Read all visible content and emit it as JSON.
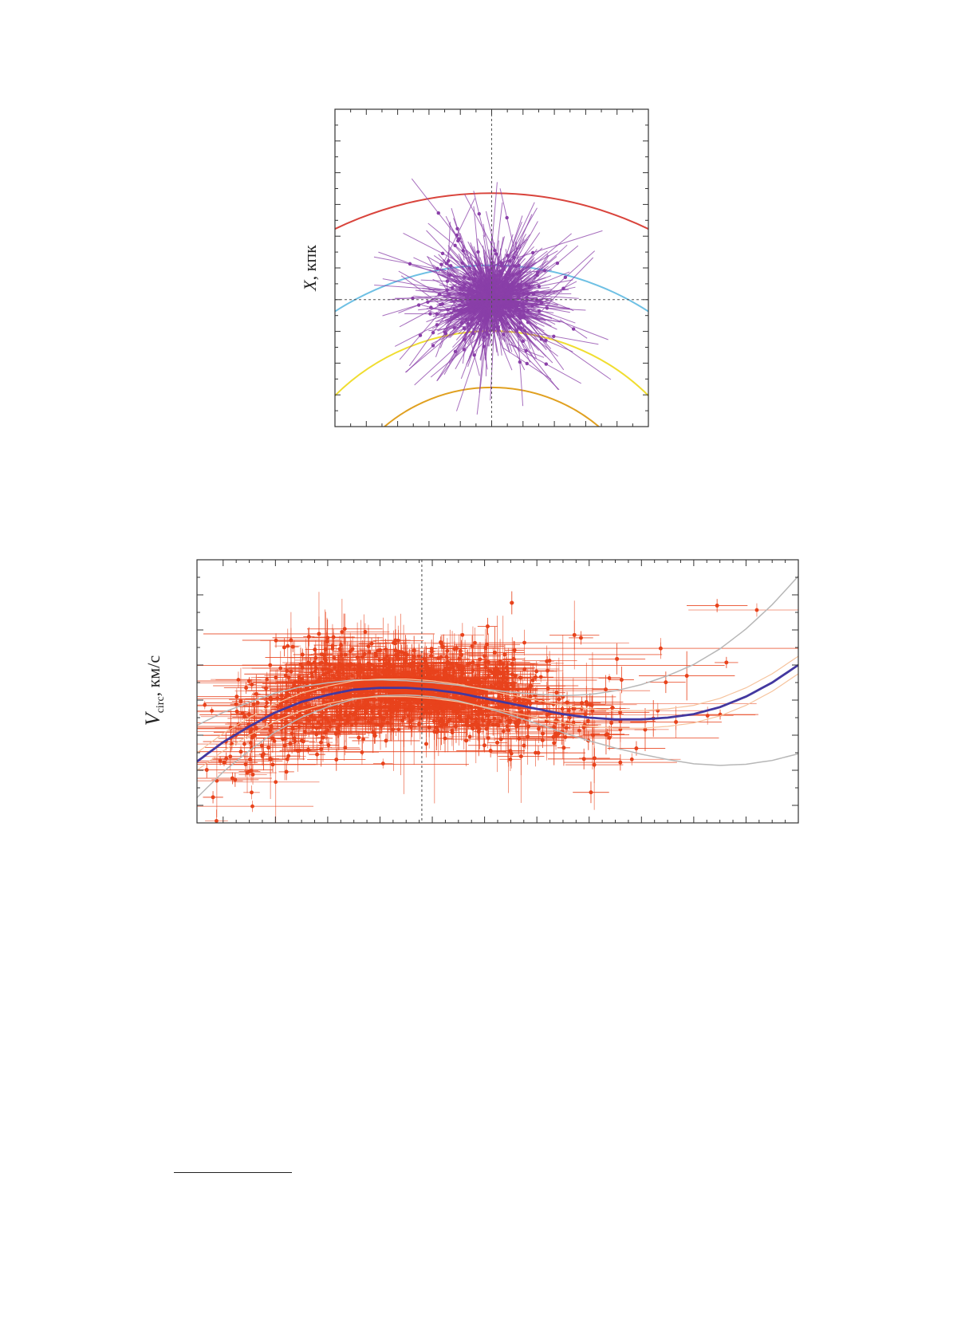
{
  "colors": {
    "star_vectors": "#8a3fa8",
    "data_points": "#e8431c",
    "rotation_curve": "#4338a0",
    "confidence_band": "#b7b7b7",
    "inner_band": "#f6c39d",
    "arc_red": "#d9443c",
    "arc_gold": "#e0a020",
    "arc_yellow": "#f0dd30",
    "arc_blue": "#6ec0e4"
  },
  "chart_data": [
    {
      "type": "scatter",
      "description_axes": "vector field of stellar velocities in Galactic X-Y plane with spiral arm segments",
      "ylabel_main": "X",
      "ylabel_unit": ", кпк",
      "xlabel": "",
      "title": "",
      "x_range": [
        -5,
        5
      ],
      "y_range": [
        -4,
        6
      ],
      "grid": false,
      "reference_lines": {
        "x": 0,
        "y": 0,
        "style": "dotted"
      },
      "spiral_arms": [
        {
          "color": "#d9443c",
          "center": [
            0,
            -8
          ],
          "radius": 11.5
        },
        {
          "color": "#e0a020",
          "center": [
            0,
            -8
          ],
          "radius": 15.8
        },
        {
          "color": "#6ec0e4",
          "center": [
            0,
            -8
          ],
          "radius": 9.2
        },
        {
          "color": "#f0dd30",
          "center": [
            0,
            -8
          ],
          "radius": 7.1
        },
        {
          "color": "#e0a020",
          "center": [
            0,
            -8
          ],
          "radius": 5.3
        },
        {
          "color": "#d9443c",
          "center": [
            0,
            -8
          ],
          "radius": 3.6
        }
      ],
      "vectors_note": "≈ 600 stellar positions with velocity vectors, clustered around the origin"
    },
    {
      "type": "scatter",
      "ylabel_main": "V",
      "ylabel_sub": "circ",
      "ylabel_unit": ", км/с",
      "xlabel": "",
      "title": "",
      "x_range": [
        4.5,
        16
      ],
      "y_range": [
        150,
        300
      ],
      "grid": false,
      "reference_lines": {
        "x": 8.8,
        "style": "dotted"
      },
      "rotation_curve": {
        "x": [
          4.5,
          5.0,
          5.5,
          6.0,
          6.5,
          7.0,
          7.5,
          8.0,
          8.5,
          9.0,
          9.5,
          10.0,
          10.5,
          11.0,
          11.5,
          12.0,
          12.5,
          13.0,
          13.5,
          14.0,
          14.5,
          15.0,
          15.5,
          16.0
        ],
        "y": [
          185,
          196,
          205,
          213,
          219,
          223,
          226,
          227,
          227,
          226,
          224,
          221,
          218,
          215,
          212,
          210,
          209,
          209,
          210,
          212,
          216,
          222,
          230,
          240
        ]
      },
      "points_note": "≈ 2500 measurements with error bars, densest near x = 8.8"
    }
  ]
}
